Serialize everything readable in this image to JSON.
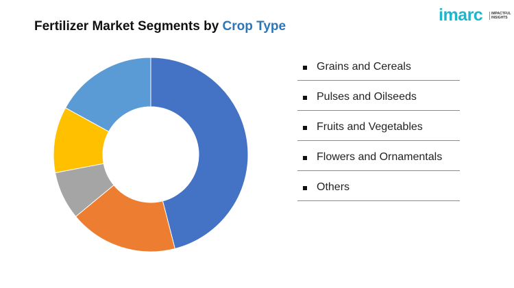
{
  "title": {
    "prefix": "Fertilizer Market Segments by",
    "highlight": "Crop Type"
  },
  "logo": {
    "word": "imarc",
    "tagline_line1": "IMPACTFUL",
    "tagline_line2": "INSIGHTS"
  },
  "chart_data": {
    "type": "pie",
    "donut": true,
    "categories": [
      "Grains and Cereals",
      "Pulses and Oilseeds",
      "Fruits and Vegetables",
      "Flowers and Ornamentals",
      "Others"
    ],
    "values": [
      46,
      18,
      8,
      11,
      17
    ],
    "colors": [
      "#4472c4",
      "#ed7d31",
      "#a5a5a5",
      "#ffc000",
      "#5b9bd5"
    ],
    "legend_position": "right"
  },
  "legend": {
    "items": [
      {
        "label": "Grains and Cereals"
      },
      {
        "label": "Pulses and Oilseeds"
      },
      {
        "label": "Fruits and Vegetables"
      },
      {
        "label": "Flowers and Ornamentals"
      },
      {
        "label": "Others"
      }
    ]
  }
}
